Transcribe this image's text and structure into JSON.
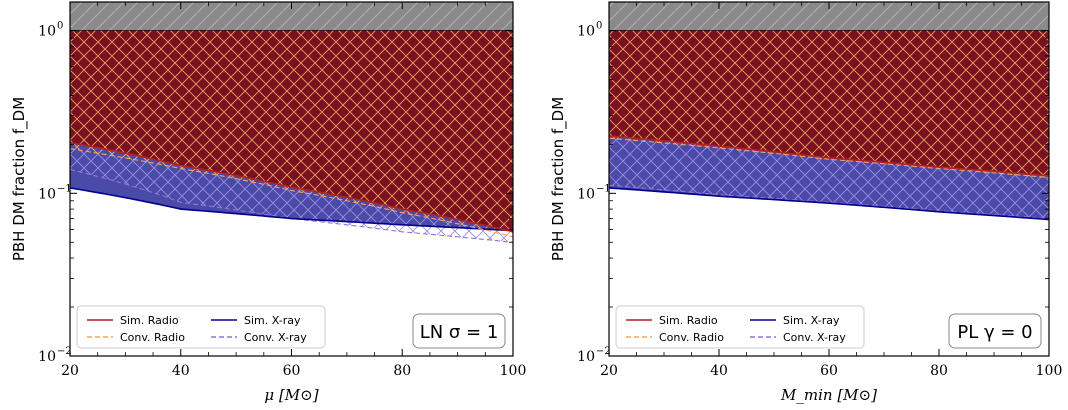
{
  "chart_data": [
    {
      "type": "area",
      "xscale": "linear",
      "yscale": "log",
      "xlim": [
        20,
        100
      ],
      "ylim": [
        0.01,
        1.5
      ],
      "xticks": [
        20,
        40,
        60,
        80,
        100
      ],
      "xtick_labels": [
        "20",
        "40",
        "60",
        "80",
        "100"
      ],
      "yticks": [
        0.01,
        0.1,
        1
      ],
      "ytick_labels": [
        "10",
        "10",
        "10"
      ],
      "ytick_exponents": [
        "−2",
        "−1",
        "0"
      ],
      "xlabel": "μ [M⊙]",
      "ylabel": "PBH DM fraction f_DM",
      "annotation": "LN σ = 1",
      "excluded_band": {
        "y_from": 1.0,
        "y_to": 1.5,
        "color": "#8a8a8a"
      },
      "series": [
        {
          "name": "Sim. Radio",
          "style": "solid",
          "color": "#b22222",
          "fill": "#7a1020",
          "x": [
            20,
            40,
            60,
            80,
            100
          ],
          "y": [
            0.205,
            0.148,
            0.109,
            0.08,
            0.058
          ]
        },
        {
          "name": "Conv. Radio",
          "style": "dashed",
          "color": "#f4a460",
          "hatch": "#e8a060",
          "x": [
            20,
            40,
            60,
            80,
            100
          ],
          "y": [
            0.188,
            0.142,
            0.104,
            0.076,
            0.054
          ]
        },
        {
          "name": "Sim. X-ray",
          "style": "solid",
          "color": "#00008b",
          "fill": "#4a4aa8",
          "x": [
            20,
            40,
            60,
            80,
            100
          ],
          "y": [
            0.108,
            0.08,
            0.07,
            0.064,
            0.059
          ]
        },
        {
          "name": "Conv. X-ray",
          "style": "dashed",
          "color": "#9370db",
          "hatch": "#9d8ce0",
          "x": [
            20,
            40,
            60,
            80,
            100
          ],
          "y": [
            0.14,
            0.088,
            0.07,
            0.058,
            0.05
          ]
        }
      ],
      "legend_placement": "lower-left"
    },
    {
      "type": "area",
      "xscale": "linear",
      "yscale": "log",
      "xlim": [
        20,
        100
      ],
      "ylim": [
        0.01,
        1.5
      ],
      "xticks": [
        20,
        40,
        60,
        80,
        100
      ],
      "xtick_labels": [
        "20",
        "40",
        "60",
        "80",
        "100"
      ],
      "yticks": [
        0.01,
        0.1,
        1
      ],
      "ytick_labels": [
        "10",
        "10",
        "10"
      ],
      "ytick_exponents": [
        "−2",
        "−1",
        "0"
      ],
      "xlabel": "M_min [M⊙]",
      "ylabel": "PBH DM fraction f_DM",
      "annotation": "PL γ = 0",
      "excluded_band": {
        "y_from": 1.0,
        "y_to": 1.5,
        "color": "#8a8a8a"
      },
      "series": [
        {
          "name": "Sim. Radio",
          "style": "solid",
          "color": "#b22222",
          "fill": "#7a1020",
          "x": [
            20,
            40,
            60,
            80,
            100
          ],
          "y": [
            0.225,
            0.195,
            0.165,
            0.145,
            0.128
          ]
        },
        {
          "name": "Conv. Radio",
          "style": "dashed",
          "color": "#f4a460",
          "hatch": "#e8a060",
          "x": [
            20,
            40,
            60,
            80,
            100
          ],
          "y": [
            0.218,
            0.19,
            0.162,
            0.142,
            0.125
          ]
        },
        {
          "name": "Sim. X-ray",
          "style": "solid",
          "color": "#00008b",
          "fill": "#4a4aa8",
          "x": [
            20,
            40,
            60,
            80,
            100
          ],
          "y": [
            0.108,
            0.096,
            0.087,
            0.077,
            0.069
          ]
        },
        {
          "name": "Conv. X-ray",
          "style": "dashed",
          "color": "#9370db",
          "hatch": "#9d8ce0",
          "x": [
            20,
            40,
            60,
            80,
            100
          ],
          "y": [
            0.112,
            0.098,
            0.088,
            0.078,
            0.07
          ]
        }
      ],
      "legend_placement": "lower-left"
    }
  ]
}
